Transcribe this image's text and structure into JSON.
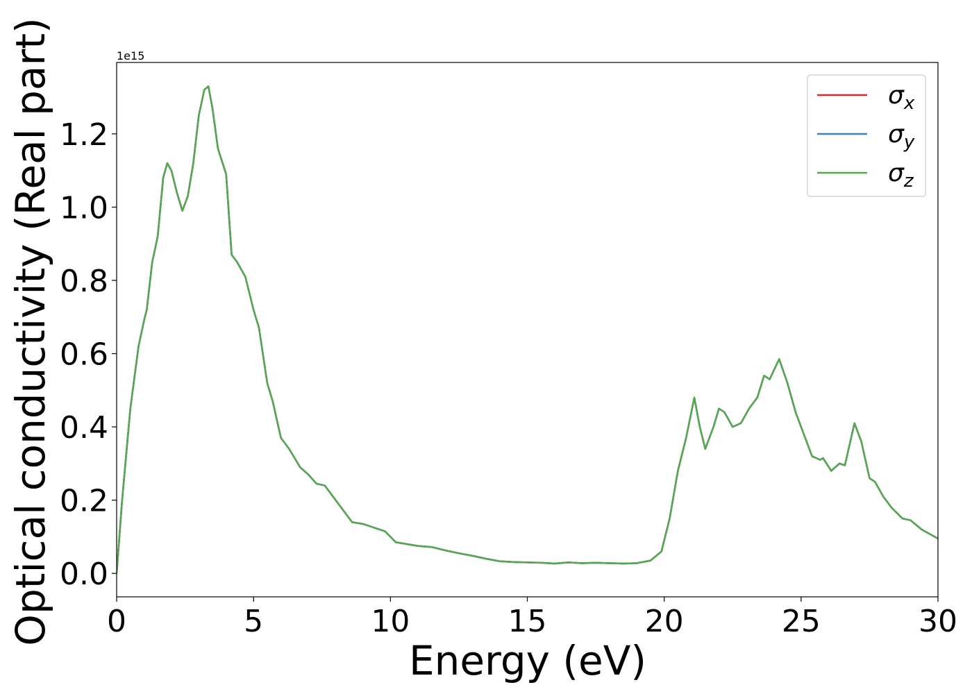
{
  "chart_data": {
    "type": "line",
    "x_label": "Energy (eV)",
    "y_label": "Optical conductivity (Real part)",
    "offset_label": "1e15",
    "xlim": [
      0,
      30
    ],
    "xticks": [
      0,
      5,
      10,
      15,
      20,
      25,
      30
    ],
    "ylim": [
      -0.064,
      1.395
    ],
    "yticks": [
      {
        "value": 0,
        "label": "0.0"
      },
      0.2,
      0.4,
      0.6,
      0.8,
      {
        "value": 1,
        "label": "1.0"
      },
      1.2
    ],
    "legend": "upper right",
    "x": [
      0,
      0.2,
      0.5,
      0.8,
      1.0,
      1.1,
      1.3,
      1.5,
      1.7,
      1.85,
      2.0,
      2.2,
      2.4,
      2.6,
      2.8,
      3.0,
      3.2,
      3.35,
      3.5,
      3.7,
      4.0,
      4.2,
      4.4,
      4.7,
      5.0,
      5.2,
      5.5,
      5.7,
      6.0,
      6.3,
      6.7,
      7.0,
      7.3,
      7.6,
      7.8,
      8.2,
      8.6,
      9.0,
      9.4,
      9.8,
      10.2,
      10.6,
      11.0,
      11.5,
      12.0,
      12.5,
      13.0,
      13.5,
      14.0,
      14.5,
      15.0,
      15.5,
      16.0,
      16.5,
      17.0,
      17.5,
      18.0,
      18.5,
      19.0,
      19.5,
      19.9,
      20.2,
      20.5,
      20.8,
      21.1,
      21.3,
      21.5,
      21.8,
      22.0,
      22.2,
      22.5,
      22.8,
      23.1,
      23.4,
      23.65,
      23.85,
      24.2,
      24.5,
      24.8,
      25.1,
      25.4,
      25.7,
      25.8,
      26.1,
      26.4,
      26.6,
      26.95,
      27.2,
      27.5,
      27.7,
      28.0,
      28.3,
      28.7,
      29.0,
      29.4,
      30.0
    ],
    "series": [
      {
        "name": "σx",
        "color": "#d62728",
        "values": [
          0,
          0.2,
          0.45,
          0.62,
          0.69,
          0.72,
          0.85,
          0.92,
          1.08,
          1.12,
          1.1,
          1.04,
          0.99,
          1.03,
          1.12,
          1.25,
          1.32,
          1.33,
          1.27,
          1.16,
          1.09,
          0.87,
          0.85,
          0.81,
          0.72,
          0.67,
          0.52,
          0.47,
          0.37,
          0.34,
          0.29,
          0.27,
          0.245,
          0.24,
          0.22,
          0.18,
          0.14,
          0.135,
          0.125,
          0.115,
          0.085,
          0.08,
          0.075,
          0.072,
          0.063,
          0.055,
          0.048,
          0.04,
          0.033,
          0.031,
          0.03,
          0.029,
          0.027,
          0.03,
          0.028,
          0.029,
          0.028,
          0.027,
          0.028,
          0.035,
          0.06,
          0.15,
          0.28,
          0.37,
          0.48,
          0.4,
          0.34,
          0.4,
          0.45,
          0.44,
          0.4,
          0.41,
          0.45,
          0.48,
          0.54,
          0.53,
          0.585,
          0.52,
          0.44,
          0.38,
          0.32,
          0.31,
          0.315,
          0.28,
          0.3,
          0.295,
          0.41,
          0.36,
          0.26,
          0.25,
          0.21,
          0.18,
          0.15,
          0.145,
          0.12,
          0.095
        ]
      },
      {
        "name": "σy",
        "color": "#3b7fb4",
        "values": [
          0,
          0.2,
          0.45,
          0.62,
          0.69,
          0.72,
          0.85,
          0.92,
          1.08,
          1.12,
          1.1,
          1.04,
          0.99,
          1.03,
          1.12,
          1.25,
          1.32,
          1.33,
          1.27,
          1.16,
          1.09,
          0.87,
          0.85,
          0.81,
          0.72,
          0.67,
          0.52,
          0.47,
          0.37,
          0.34,
          0.29,
          0.27,
          0.245,
          0.24,
          0.22,
          0.18,
          0.14,
          0.135,
          0.125,
          0.115,
          0.085,
          0.08,
          0.075,
          0.072,
          0.063,
          0.055,
          0.048,
          0.04,
          0.033,
          0.031,
          0.03,
          0.029,
          0.027,
          0.03,
          0.028,
          0.029,
          0.028,
          0.027,
          0.028,
          0.035,
          0.06,
          0.15,
          0.28,
          0.37,
          0.48,
          0.4,
          0.34,
          0.4,
          0.45,
          0.44,
          0.4,
          0.41,
          0.45,
          0.48,
          0.54,
          0.53,
          0.585,
          0.52,
          0.44,
          0.38,
          0.32,
          0.31,
          0.315,
          0.28,
          0.3,
          0.295,
          0.41,
          0.36,
          0.26,
          0.25,
          0.21,
          0.18,
          0.15,
          0.145,
          0.12,
          0.095
        ]
      },
      {
        "name": "σz",
        "color": "#55a84f",
        "values": [
          0,
          0.2,
          0.45,
          0.62,
          0.69,
          0.72,
          0.85,
          0.92,
          1.08,
          1.12,
          1.1,
          1.04,
          0.99,
          1.03,
          1.12,
          1.25,
          1.32,
          1.33,
          1.27,
          1.16,
          1.09,
          0.87,
          0.85,
          0.81,
          0.72,
          0.67,
          0.52,
          0.47,
          0.37,
          0.34,
          0.29,
          0.27,
          0.245,
          0.24,
          0.22,
          0.18,
          0.14,
          0.135,
          0.125,
          0.115,
          0.085,
          0.08,
          0.075,
          0.072,
          0.063,
          0.055,
          0.048,
          0.04,
          0.033,
          0.031,
          0.03,
          0.029,
          0.027,
          0.03,
          0.028,
          0.029,
          0.028,
          0.027,
          0.028,
          0.035,
          0.06,
          0.15,
          0.28,
          0.37,
          0.48,
          0.4,
          0.34,
          0.4,
          0.45,
          0.44,
          0.4,
          0.41,
          0.45,
          0.48,
          0.54,
          0.53,
          0.585,
          0.52,
          0.44,
          0.38,
          0.32,
          0.31,
          0.315,
          0.28,
          0.3,
          0.295,
          0.41,
          0.36,
          0.26,
          0.25,
          0.21,
          0.18,
          0.15,
          0.145,
          0.12,
          0.095
        ]
      }
    ]
  }
}
